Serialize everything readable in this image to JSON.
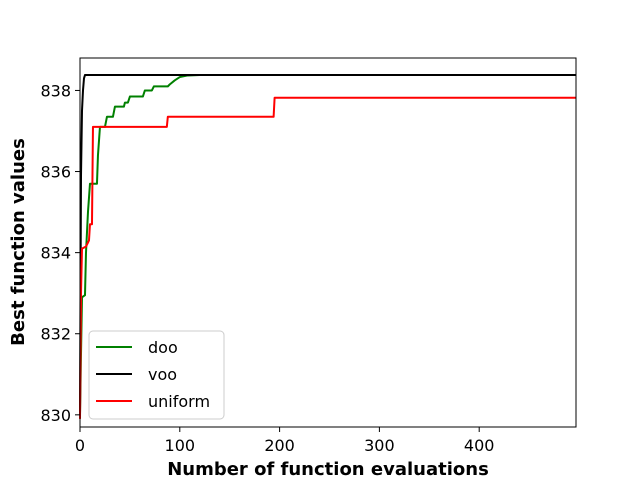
{
  "chart_data": {
    "type": "line",
    "xlabel": "Number of function evaluations",
    "ylabel": "Best function values",
    "xlim": [
      0,
      497
    ],
    "ylim": [
      829.7,
      838.8
    ],
    "xticks": [
      0,
      100,
      200,
      300,
      400
    ],
    "yticks": [
      830,
      832,
      834,
      836,
      838
    ],
    "grid": false,
    "legend_position": "lower-left",
    "series": [
      {
        "name": "doo",
        "color": "#008000",
        "points": [
          [
            0,
            830.0
          ],
          [
            1,
            831.5
          ],
          [
            2,
            832.9
          ],
          [
            5,
            832.95
          ],
          [
            6,
            834.0
          ],
          [
            8,
            835.0
          ],
          [
            10,
            835.7
          ],
          [
            17,
            835.7
          ],
          [
            18,
            836.4
          ],
          [
            20,
            837.1
          ],
          [
            25,
            837.1
          ],
          [
            27,
            837.35
          ],
          [
            33,
            837.35
          ],
          [
            35,
            837.6
          ],
          [
            44,
            837.6
          ],
          [
            45,
            837.7
          ],
          [
            48,
            837.7
          ],
          [
            50,
            837.85
          ],
          [
            63,
            837.85
          ],
          [
            65,
            838.0
          ],
          [
            72,
            838.0
          ],
          [
            74,
            838.1
          ],
          [
            88,
            838.1
          ],
          [
            90,
            838.15
          ],
          [
            95,
            838.25
          ],
          [
            100,
            838.33
          ],
          [
            108,
            838.37
          ],
          [
            120,
            838.38
          ],
          [
            497,
            838.38
          ]
        ]
      },
      {
        "name": "voo",
        "color": "#000000",
        "points": [
          [
            0,
            830.0
          ],
          [
            1,
            835.9
          ],
          [
            2,
            837.5
          ],
          [
            3,
            838.0
          ],
          [
            4,
            838.3
          ],
          [
            5,
            838.38
          ],
          [
            497,
            838.38
          ]
        ]
      },
      {
        "name": "uniform",
        "color": "#ff0000",
        "points": [
          [
            0,
            829.9
          ],
          [
            1,
            833.0
          ],
          [
            2,
            834.1
          ],
          [
            6,
            834.15
          ],
          [
            8,
            834.25
          ],
          [
            9,
            834.3
          ],
          [
            10,
            834.7
          ],
          [
            12,
            834.7
          ],
          [
            13,
            837.1
          ],
          [
            87,
            837.1
          ],
          [
            88,
            837.35
          ],
          [
            194,
            837.35
          ],
          [
            195,
            837.82
          ],
          [
            497,
            837.82
          ]
        ]
      }
    ]
  }
}
